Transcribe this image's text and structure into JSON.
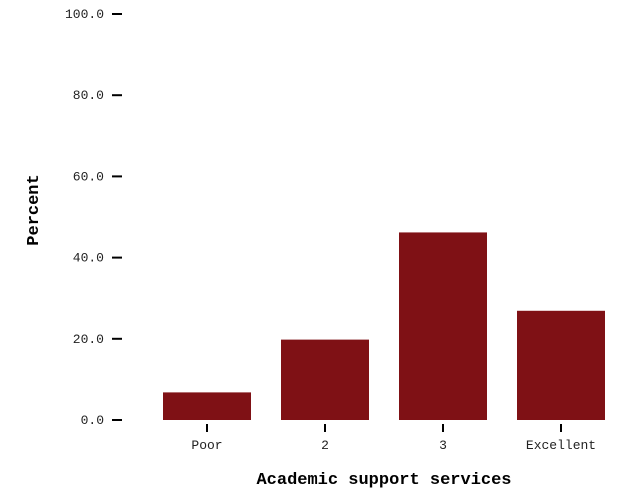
{
  "chart_data": {
    "type": "bar",
    "categories": [
      "Poor",
      "2",
      "3",
      "Excellent"
    ],
    "values": [
      6.8,
      19.8,
      46.2,
      26.9
    ],
    "xlabel": "Academic support services",
    "ylabel": "Percent",
    "ylim": [
      0,
      100
    ],
    "yticks": [
      0,
      20,
      40,
      60,
      80,
      100
    ],
    "ytick_labels": [
      "0.0",
      "20.0",
      "40.0",
      "60.0",
      "80.0",
      "100.0"
    ],
    "grid": false,
    "legend": "none",
    "bar_color": "#7f1115"
  }
}
